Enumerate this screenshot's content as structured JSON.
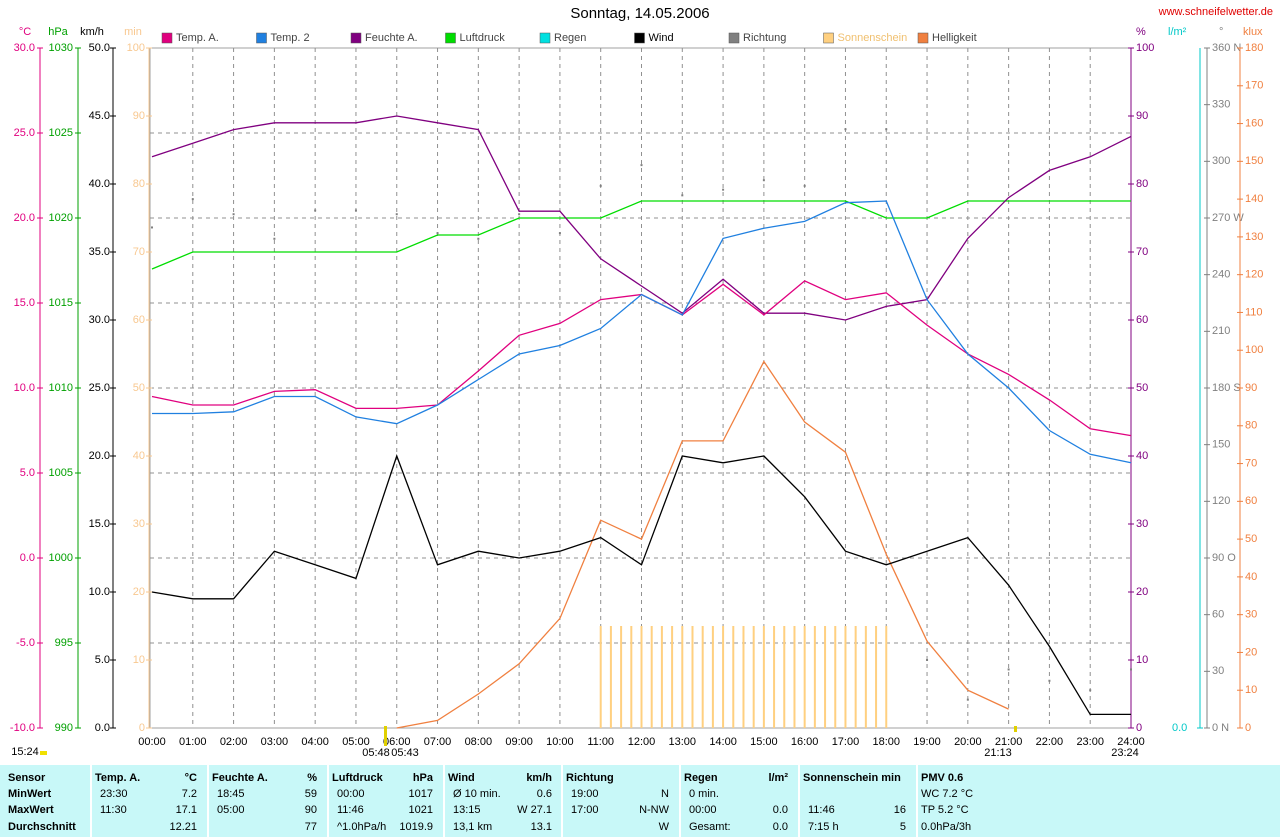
{
  "chart_data": {
    "type": "line",
    "title": "Sonntag, 14.05.2006",
    "source": "www.schneifelwetter.de",
    "grid": true,
    "categories": [
      "00:00",
      "01:00",
      "02:00",
      "03:00",
      "04:00",
      "05:00",
      "06:00",
      "07:00",
      "08:00",
      "09:00",
      "10:00",
      "11:00",
      "12:00",
      "13:00",
      "14:00",
      "15:00",
      "16:00",
      "17:00",
      "18:00",
      "19:00",
      "20:00",
      "21:00",
      "22:00",
      "23:00",
      "24:00"
    ],
    "axes": [
      {
        "unit": "°C",
        "side": "left",
        "color": "#e0007f",
        "lim": [
          -10,
          30
        ],
        "ticks": [
          {
            "value": -10,
            "label": "-10.0"
          },
          {
            "value": -5,
            "label": "-5.0"
          },
          {
            "value": 0,
            "label": "0.0"
          },
          {
            "value": 5,
            "label": "5.0"
          },
          {
            "value": 10,
            "label": "10.0"
          },
          {
            "value": 15,
            "label": "15.0"
          },
          {
            "value": 20,
            "label": "20.0"
          },
          {
            "value": 25,
            "label": "25.0"
          },
          {
            "value": 30,
            "label": "30.0"
          }
        ]
      },
      {
        "unit": "hPa",
        "side": "left",
        "color": "#00a000",
        "lim": [
          990,
          1030
        ],
        "ticks": [
          990,
          995,
          1000,
          1005,
          1010,
          1015,
          1020,
          1025,
          1030
        ]
      },
      {
        "unit": "km/h",
        "side": "left",
        "color": "#000000",
        "lim": [
          0,
          50
        ],
        "ticks": [
          {
            "value": 0,
            "label": "0.0"
          },
          {
            "value": 5,
            "label": "5.0"
          },
          {
            "value": 10,
            "label": "10.0"
          },
          {
            "value": 15,
            "label": "15.0"
          },
          {
            "value": 20,
            "label": "20.0"
          },
          {
            "value": 25,
            "label": "25.0"
          },
          {
            "value": 30,
            "label": "30.0"
          },
          {
            "value": 35,
            "label": "35.0"
          },
          {
            "value": 40,
            "label": "40.0"
          },
          {
            "value": 45,
            "label": "45.0"
          },
          {
            "value": 50,
            "label": "50.0"
          }
        ]
      },
      {
        "unit": "min",
        "side": "left",
        "color": "#f8c890",
        "lim": [
          0,
          100
        ],
        "ticks": [
          0,
          10,
          20,
          30,
          40,
          50,
          60,
          70,
          80,
          90,
          100
        ]
      },
      {
        "unit": "%",
        "side": "right",
        "color": "#800080",
        "lim": [
          0,
          100
        ],
        "ticks": [
          0,
          10,
          20,
          30,
          40,
          50,
          60,
          70,
          80,
          90,
          100
        ]
      },
      {
        "unit": "l/m²",
        "side": "right",
        "color": "#00c8c8",
        "lim": [
          0,
          100
        ],
        "ticks": [
          {
            "value": 0,
            "label": "0.0"
          }
        ]
      },
      {
        "unit": "°",
        "side": "right",
        "color": "#808080",
        "lim": [
          0,
          360
        ],
        "ticks": [
          {
            "value": 0,
            "label": "0 N"
          },
          30,
          60,
          {
            "value": 90,
            "label": "90 O"
          },
          120,
          150,
          {
            "value": 180,
            "label": "180 S"
          },
          210,
          240,
          {
            "value": 270,
            "label": "270 W"
          },
          300,
          330,
          {
            "value": 360,
            "label": "360 N"
          }
        ]
      },
      {
        "unit": "klux",
        "side": "right",
        "color": "#f08040",
        "lim": [
          0,
          180
        ],
        "ticks": [
          0,
          10,
          20,
          30,
          40,
          50,
          60,
          70,
          80,
          90,
          100,
          110,
          120,
          130,
          140,
          150,
          160,
          170,
          180
        ]
      }
    ],
    "series": [
      {
        "name": "Temp. A.",
        "color": "#e0007f",
        "axis": 0,
        "values": [
          9.5,
          9.0,
          9.0,
          9.8,
          9.9,
          8.8,
          8.8,
          9.0,
          11.0,
          13.1,
          13.8,
          15.2,
          15.5,
          14.3,
          16.1,
          14.3,
          16.3,
          15.2,
          15.6,
          13.7,
          12.0,
          10.8,
          9.3,
          7.6,
          7.2
        ]
      },
      {
        "name": "Temp. 2",
        "color": "#2080e0",
        "axis": 0,
        "values": [
          8.5,
          8.5,
          8.6,
          9.5,
          9.5,
          8.3,
          7.9,
          9.0,
          10.5,
          12.0,
          12.5,
          13.5,
          15.5,
          14.3,
          18.8,
          19.4,
          19.8,
          20.9,
          21.0,
          15.2,
          12.0,
          10.0,
          7.5,
          6.1,
          5.6
        ]
      },
      {
        "name": "Feuchte A.",
        "color": "#800080",
        "axis": 4,
        "values": [
          84,
          86,
          88,
          89,
          89,
          89,
          90,
          89,
          88,
          76,
          76,
          69,
          65,
          61,
          66,
          61,
          61,
          60,
          62,
          63,
          72,
          78,
          82,
          84,
          87
        ]
      },
      {
        "name": "Luftdruck",
        "color": "#00dd00",
        "axis": 1,
        "values": [
          1017,
          1018,
          1018,
          1018,
          1018,
          1018,
          1018,
          1019,
          1019,
          1020,
          1020,
          1020,
          1021,
          1021,
          1021,
          1021,
          1021,
          1021,
          1020,
          1020,
          1021,
          1021,
          1021,
          1021,
          1021
        ]
      },
      {
        "name": "Regen",
        "color": "#00e0e0",
        "axis": 5
      },
      {
        "name": "Wind",
        "color": "#000000",
        "axis": 2,
        "values": [
          10,
          9.5,
          9.5,
          13,
          12,
          11,
          20,
          12,
          13,
          12.5,
          13,
          14,
          12,
          20,
          19.5,
          20,
          17,
          13,
          12,
          13,
          14,
          10.5,
          6,
          1,
          1
        ]
      },
      {
        "name": "Richtung",
        "color": "#808080",
        "axis": 6,
        "style": "dots",
        "values": [
          265,
          280,
          272,
          259,
          274,
          274,
          272,
          262,
          259,
          272,
          262,
          287,
          298,
          282,
          285,
          290,
          287,
          317,
          317,
          36,
          15,
          31,
          25,
          20,
          31
        ]
      },
      {
        "name": "Sonnenschein",
        "color": "#ffd080",
        "axis": 3,
        "style": "bars",
        "x": [
          "11:00",
          "11:15",
          "11:30",
          "11:45",
          "12:00",
          "12:15",
          "12:30",
          "12:45",
          "13:00",
          "13:15",
          "13:30",
          "13:45",
          "14:00",
          "14:15",
          "14:30",
          "14:45",
          "15:00",
          "15:15",
          "15:30",
          "15:45",
          "16:00",
          "16:15",
          "16:30",
          "16:45",
          "17:00",
          "17:15",
          "17:30",
          "17:45",
          "18:00"
        ],
        "values": [
          15,
          15,
          15,
          15,
          15,
          15,
          15,
          15,
          15,
          15,
          15,
          15,
          15,
          15,
          15,
          15,
          15,
          15,
          15,
          15,
          15,
          15,
          15,
          15,
          15,
          15,
          15,
          15,
          15
        ]
      },
      {
        "name": "Helligkeit",
        "color": "#f08040",
        "axis": 7,
        "values": [
          null,
          null,
          null,
          null,
          null,
          null,
          0,
          2,
          9,
          17,
          29,
          55,
          50,
          76,
          76,
          97,
          81,
          73,
          46,
          23,
          10,
          5,
          null,
          null,
          null
        ]
      }
    ],
    "annotations": [
      "05:48",
      "05:43",
      "21:13",
      "23:24",
      "15:24"
    ]
  },
  "table": {
    "groups": [
      {
        "header": [
          "Sensor"
        ],
        "rows": [
          [
            "MinWert"
          ],
          [
            "MaxWert"
          ],
          [
            "Durchschnitt"
          ]
        ]
      },
      {
        "header": [
          "Temp. A.",
          "°C"
        ],
        "rows": [
          [
            "23:30",
            "7.2"
          ],
          [
            "11:30",
            "17.1"
          ],
          [
            null,
            "12.21"
          ]
        ]
      },
      {
        "header": [
          "Feuchte A.",
          "%"
        ],
        "rows": [
          [
            "18:45",
            "59"
          ],
          [
            "05:00",
            "90"
          ],
          [
            null,
            "77"
          ]
        ]
      },
      {
        "header": [
          "Luftdruck",
          "hPa"
        ],
        "rows": [
          [
            "00:00",
            "1017"
          ],
          [
            "11:46",
            "1021"
          ],
          [
            "^1.0hPa/h",
            "1019.9"
          ]
        ]
      },
      {
        "header": [
          "Wind",
          "km/h"
        ],
        "rows": [
          [
            "Ø 10 min.",
            "0.6"
          ],
          [
            "13:15",
            "W 27.1"
          ],
          [
            "13,1 km",
            "13.1"
          ]
        ]
      },
      {
        "header": [
          "Richtung",
          null
        ],
        "rows": [
          [
            "19:00",
            "N"
          ],
          [
            "17:00",
            "N-NW"
          ],
          [
            null,
            "W"
          ]
        ]
      },
      {
        "header": [
          "Regen",
          "l/m²"
        ],
        "rows": [
          [
            "0 min.",
            null
          ],
          [
            "00:00",
            "0.0"
          ],
          [
            "Gesamt:",
            "0.0"
          ]
        ]
      },
      {
        "header": [
          "Sonnenschein min",
          null
        ],
        "rows": [
          [
            null,
            null
          ],
          [
            "11:46",
            "16"
          ],
          [
            "7:15 h",
            "5"
          ]
        ]
      },
      {
        "header": [
          "PMV 0.6"
        ],
        "rows": [
          [
            "WC 7.2 °C"
          ],
          [
            "TP 5.2 °C"
          ],
          [
            "0.0hPa/3h"
          ]
        ]
      }
    ]
  }
}
